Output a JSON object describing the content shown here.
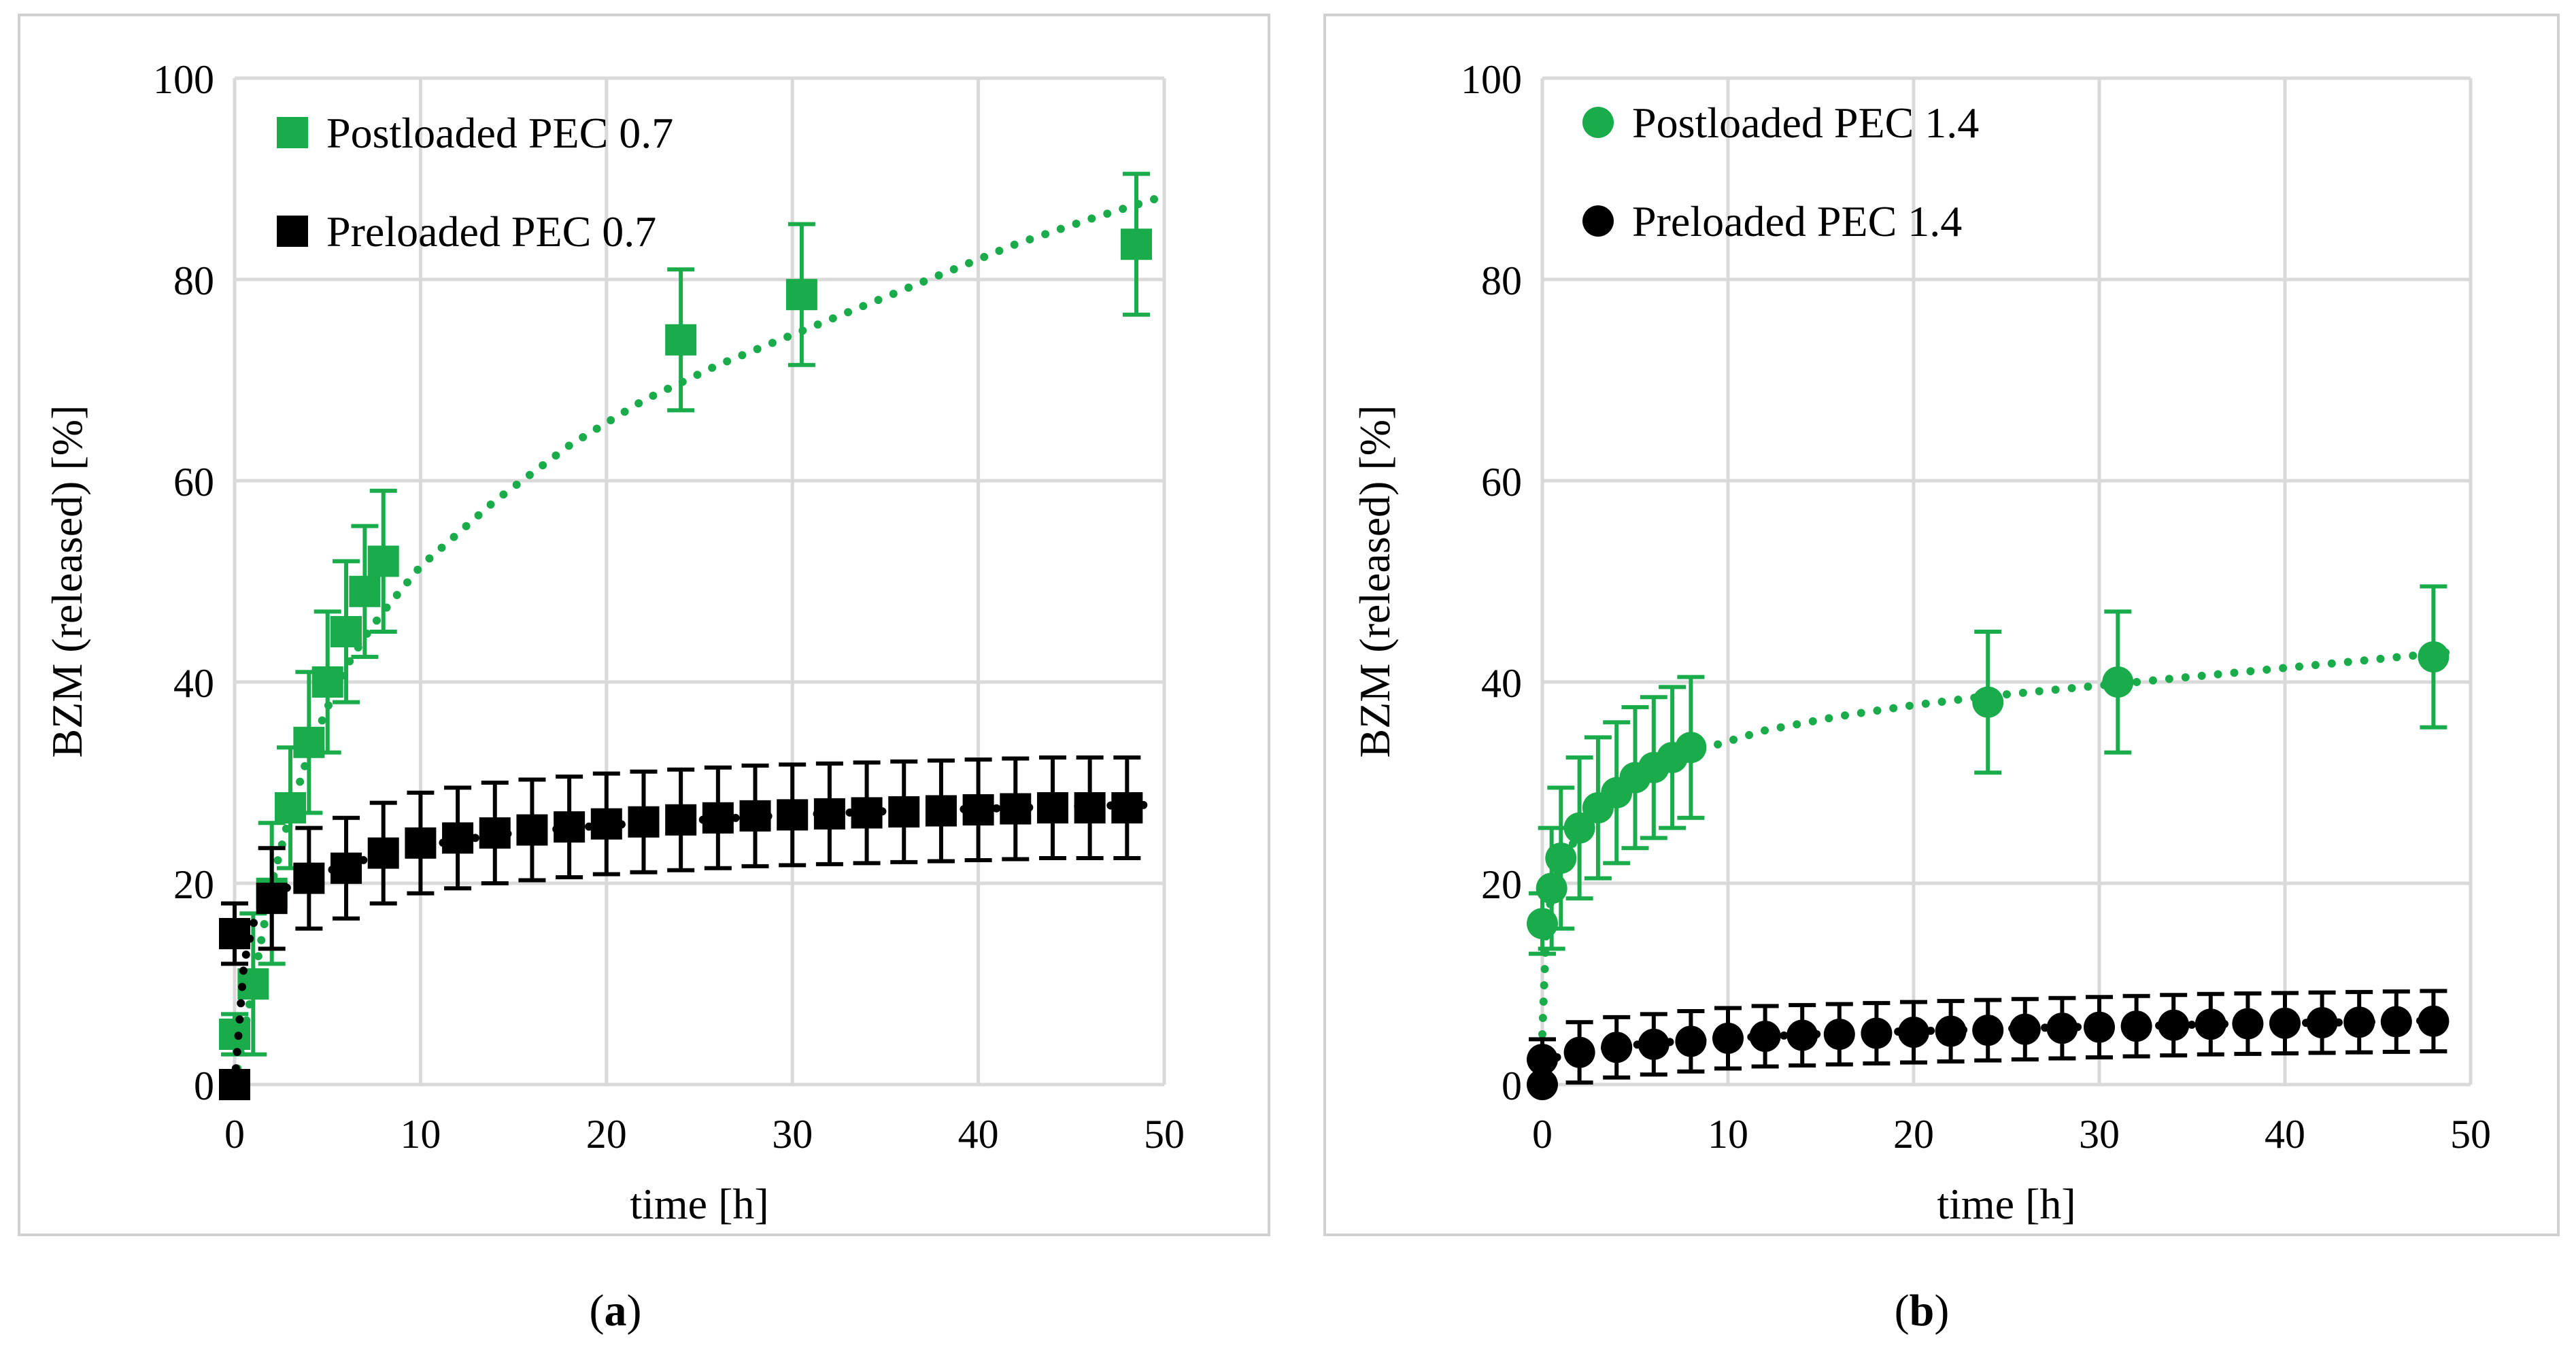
{
  "chart_data": [
    {
      "id": "a",
      "type": "scatter",
      "caption_open": "(",
      "caption_letter": "a",
      "caption_close": ")",
      "xlabel": "time [h]",
      "ylabel": "BZM (released) [%]",
      "xlim": [
        0,
        50
      ],
      "ylim": [
        0,
        100
      ],
      "xticks": [
        0,
        10,
        20,
        30,
        40,
        50
      ],
      "yticks": [
        0,
        20,
        40,
        60,
        80,
        100
      ],
      "grid": true,
      "legend_position": "top-left",
      "series": [
        {
          "name": "Postloaded PEC 0.7",
          "marker": "square",
          "color": "#1aac4b",
          "x": [
            0,
            1,
            2,
            3,
            4,
            5,
            6,
            7,
            8,
            24,
            30.5,
            48.5
          ],
          "y": [
            5,
            10,
            19,
            27.5,
            34,
            40,
            45,
            49,
            52,
            74,
            78.5,
            83.5
          ],
          "error": [
            2,
            7,
            7,
            6,
            7,
            7,
            7,
            6.5,
            7,
            7,
            7,
            7
          ],
          "trend": {
            "style": "dotted",
            "x": [
              0,
              1,
              2,
              3,
              4,
              5,
              6,
              7,
              8,
              10,
              14,
              18,
              22,
              26,
              30,
              34,
              38,
              42,
              46,
              49.5
            ],
            "y": [
              0,
              10,
              20,
              27,
              33,
              37.5,
              41.5,
              44.5,
              47,
              51.5,
              58,
              63.5,
              68,
              71.5,
              74.5,
              77.5,
              80.5,
              83.5,
              86,
              88
            ]
          }
        },
        {
          "name": "Preloaded PEC 0.7",
          "marker": "square",
          "color": "#000000",
          "x": [
            0,
            0,
            2,
            4,
            6,
            8,
            10,
            12,
            14,
            16,
            18,
            20,
            22,
            24,
            26,
            28,
            30,
            32,
            34,
            36,
            38,
            40,
            42,
            44,
            46,
            48
          ],
          "y": [
            0,
            15,
            18.5,
            20.5,
            21.5,
            23,
            24,
            24.5,
            25,
            25.3,
            25.6,
            25.9,
            26.1,
            26.3,
            26.5,
            26.7,
            26.8,
            26.9,
            27,
            27.1,
            27.2,
            27.3,
            27.4,
            27.5,
            27.5,
            27.5
          ],
          "error": [
            0,
            3,
            5,
            5,
            5,
            5,
            5,
            5,
            5,
            5,
            5,
            5,
            5,
            5,
            5,
            5,
            5,
            5,
            5,
            5,
            5,
            5,
            5,
            5,
            5,
            5
          ],
          "trend": {
            "style": "dotted",
            "x": [
              0,
              0.5,
              1,
              2,
              3,
              4,
              6,
              8,
              10,
              14,
              18,
              22,
              26,
              30,
              34,
              38,
              42,
              46,
              49.5
            ],
            "y": [
              0,
              12,
              16,
              18.5,
              19.8,
              20.6,
              21.8,
              22.9,
              23.7,
              24.8,
              25.5,
              26,
              26.4,
              26.8,
              27.1,
              27.3,
              27.5,
              27.7,
              27.8
            ]
          }
        }
      ]
    },
    {
      "id": "b",
      "type": "scatter",
      "caption_open": "(",
      "caption_letter": "b",
      "caption_close": ")",
      "xlabel": "time [h]",
      "ylabel": "BZM (released) [%]",
      "xlim": [
        0,
        50
      ],
      "ylim": [
        0,
        100
      ],
      "xticks": [
        0,
        10,
        20,
        30,
        40,
        50
      ],
      "yticks": [
        0,
        20,
        40,
        60,
        80,
        100
      ],
      "grid": true,
      "legend_position": "top-left",
      "series": [
        {
          "name": "Postloaded PEC 1.4",
          "marker": "circle",
          "color": "#1aac4b",
          "x": [
            0,
            0.5,
            1,
            2,
            3,
            4,
            5,
            6,
            7,
            8,
            24,
            31,
            48
          ],
          "y": [
            16,
            19.5,
            22.5,
            25.5,
            27.5,
            29,
            30.5,
            31.5,
            32.5,
            33.5,
            38,
            40,
            42.5
          ],
          "error": [
            3,
            6,
            7,
            7,
            7,
            7,
            7,
            7,
            7,
            7,
            7,
            7,
            7
          ],
          "trend": {
            "style": "dotted",
            "x": [
              0,
              0.2,
              0.5,
              1,
              2,
              3,
              4,
              5,
              6,
              7,
              8,
              12,
              16,
              20,
              24,
              28,
              32,
              36,
              40,
              44,
              49
            ],
            "y": [
              5,
              15,
              19,
              22,
              25,
              27,
              28.7,
              30,
              31.2,
              32.2,
              33,
              35.2,
              36.6,
              37.7,
              38.6,
              39.3,
              40,
              40.7,
              41.4,
              42.1,
              43
            ]
          }
        },
        {
          "name": "Preloaded PEC 1.4",
          "marker": "circle",
          "color": "#000000",
          "x": [
            0,
            0,
            2,
            4,
            6,
            8,
            10,
            12,
            14,
            16,
            18,
            20,
            22,
            24,
            26,
            28,
            30,
            32,
            34,
            36,
            38,
            40,
            42,
            44,
            46,
            48
          ],
          "y": [
            0,
            2.5,
            3.2,
            3.7,
            4,
            4.3,
            4.6,
            4.8,
            4.9,
            5,
            5.1,
            5.2,
            5.3,
            5.4,
            5.5,
            5.6,
            5.7,
            5.8,
            5.9,
            6,
            6.05,
            6.1,
            6.15,
            6.2,
            6.25,
            6.3
          ],
          "error": [
            0,
            2,
            3,
            3,
            3,
            3,
            3,
            3,
            3,
            3,
            3,
            3,
            3,
            3,
            3,
            3,
            3,
            3,
            3,
            3,
            3,
            3,
            3,
            3,
            3,
            3
          ],
          "trend": {
            "style": "dotted",
            "x": [
              0,
              1,
              2,
              4,
              6,
              8,
              12,
              16,
              20,
              24,
              28,
              32,
              36,
              40,
              44,
              49
            ],
            "y": [
              2,
              2.9,
              3.3,
              3.8,
              4.1,
              4.4,
              4.8,
              5.1,
              5.3,
              5.5,
              5.7,
              5.8,
              6,
              6.1,
              6.2,
              6.4
            ]
          }
        }
      ]
    }
  ]
}
